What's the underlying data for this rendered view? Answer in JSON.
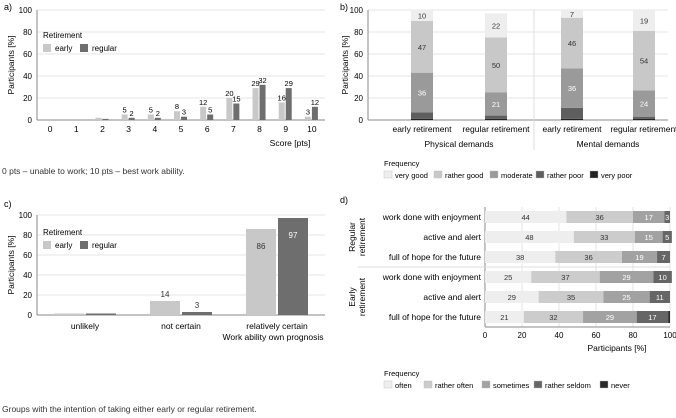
{
  "caption_a": "0 pts – unable to work; 10 pts – best work ability.",
  "caption_c": "Groups with the intention of taking either early or regular retirement.",
  "colors": {
    "early": "#c8c8c8",
    "regular": "#6e6e6e",
    "grid": "#dddddd",
    "axis": "#888888",
    "very_good": "#eeeeee",
    "rather_good": "#c8c8c8",
    "moderate": "#9a9a9a",
    "rather_poor": "#5e5e5e",
    "very_poor": "#222222",
    "often": "#eeeeee",
    "rather_often": "#cccccc",
    "sometimes": "#a2a2a2",
    "rather_seldom": "#666666",
    "never": "#2a2a2a"
  },
  "chart_data": [
    {
      "panel": "a)",
      "type": "bar",
      "ylabel": "Participants [%]",
      "xlabel": "Score [pts]",
      "ylim": [
        0,
        100
      ],
      "yticks": [
        0,
        20,
        40,
        60,
        80,
        100
      ],
      "legend_title": "Retirement",
      "categories": [
        "0",
        "1",
        "2",
        "3",
        "4",
        "5",
        "6",
        "7",
        "8",
        "9",
        "10"
      ],
      "series": [
        {
          "name": "early",
          "values": [
            0,
            0,
            2,
            5,
            5,
            8,
            12,
            20,
            29,
            16,
            3
          ],
          "labels": [
            "",
            "",
            "",
            "5",
            "5",
            "8",
            "12",
            "20",
            "29",
            "16",
            "3"
          ]
        },
        {
          "name": "regular",
          "values": [
            0,
            0,
            1,
            2,
            2,
            3,
            5,
            15,
            32,
            29,
            12
          ],
          "labels": [
            "",
            "",
            "",
            "2",
            "2",
            "3",
            "5",
            "15",
            "32",
            "29",
            "12"
          ]
        }
      ]
    },
    {
      "panel": "b)",
      "type": "bar",
      "stacked": true,
      "ylabel": "Participants [%]",
      "ylim": [
        0,
        100
      ],
      "yticks": [
        0,
        20,
        40,
        60,
        80,
        100
      ],
      "legend_title": "Frequency",
      "categories": [
        "early retirement",
        "regular retirement",
        "early retirement",
        "regular retirement"
      ],
      "groups": [
        "Physical demands",
        "Mental demands"
      ],
      "series": [
        {
          "name": "very poor",
          "values": [
            1,
            1,
            1,
            1
          ]
        },
        {
          "name": "rather poor",
          "values": [
            6,
            3,
            10,
            2
          ]
        },
        {
          "name": "moderate",
          "values": [
            36,
            21,
            36,
            24
          ]
        },
        {
          "name": "rather good",
          "values": [
            47,
            50,
            46,
            54
          ]
        },
        {
          "name": "very good",
          "values": [
            10,
            22,
            7,
            19
          ]
        }
      ],
      "data_labels": [
        [
          "",
          "",
          "36",
          "47",
          "10"
        ],
        [
          "",
          "",
          "21",
          "50",
          "22"
        ],
        [
          "",
          "",
          "36",
          "46",
          "7"
        ],
        [
          "",
          "",
          "24",
          "54",
          "19"
        ]
      ]
    },
    {
      "panel": "c)",
      "type": "bar",
      "ylabel": "Participants [%]",
      "xlabel": "Work ability own prognosis",
      "ylim": [
        0,
        100
      ],
      "yticks": [
        0,
        20,
        40,
        60,
        80,
        100
      ],
      "legend_title": "Retirement",
      "categories": [
        "unlikely",
        "not certain",
        "relatively certain"
      ],
      "series": [
        {
          "name": "early",
          "values": [
            0,
            14,
            86
          ],
          "labels": [
            "",
            "14",
            "86"
          ]
        },
        {
          "name": "regular",
          "values": [
            0,
            3,
            97
          ],
          "labels": [
            "",
            "3",
            "97"
          ]
        }
      ]
    },
    {
      "panel": "d)",
      "type": "bar",
      "stacked": true,
      "orientation": "horizontal",
      "xlabel": "Participants [%]",
      "xlim": [
        0,
        100
      ],
      "xticks": [
        0,
        20,
        40,
        60,
        80,
        100
      ],
      "legend_title": "Frequency",
      "groups": [
        "Regular retirement",
        "Early retirement"
      ],
      "categories": [
        "work done with enjoyment",
        "active and alert",
        "full of hope for the future",
        "work done with enjoyment",
        "active and alert",
        "full of hope for the future"
      ],
      "series": [
        {
          "name": "often",
          "values": [
            44,
            48,
            38,
            25,
            29,
            21
          ]
        },
        {
          "name": "rather often",
          "values": [
            36,
            33,
            36,
            37,
            35,
            32
          ]
        },
        {
          "name": "sometimes",
          "values": [
            17,
            15,
            19,
            29,
            25,
            29
          ]
        },
        {
          "name": "rather seldom",
          "values": [
            3,
            5,
            7,
            10,
            11,
            17
          ]
        },
        {
          "name": "never",
          "values": [
            0,
            0,
            0,
            0,
            0,
            1
          ]
        }
      ],
      "data_labels": [
        [
          "44",
          "36",
          "17",
          "3",
          ""
        ],
        [
          "48",
          "33",
          "15",
          "5",
          ""
        ],
        [
          "38",
          "36",
          "19",
          "7",
          ""
        ],
        [
          "25",
          "37",
          "29",
          "10",
          ""
        ],
        [
          "29",
          "35",
          "25",
          "11",
          ""
        ],
        [
          "21",
          "32",
          "29",
          "17",
          ""
        ]
      ]
    }
  ]
}
